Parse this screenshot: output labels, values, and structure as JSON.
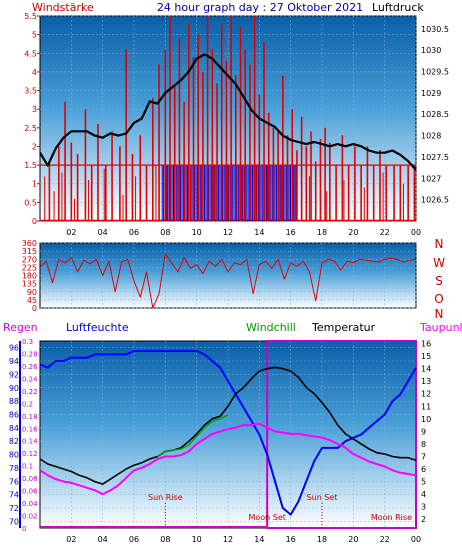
{
  "header": {
    "left_label": "Windstärke",
    "title": "24 hour graph day : 27 Oktober 2021",
    "right_label": "Luftdruck"
  },
  "colors": {
    "wind": "#e00000",
    "wind_low": "#0000cc",
    "pressure": "#000000",
    "direction": "#e00000",
    "rain_axis": "#0000cc",
    "humidity": "#0000ff",
    "windchill": "#00a000",
    "temperature": "#000000",
    "dewpoint": "#ff00ff",
    "rain_box": "#cc00cc",
    "event_text": "#cc0000",
    "bg_top": "#1070b0",
    "bg_bottom": "#ffffff"
  },
  "chart_data": [
    {
      "type": "line",
      "name": "wind-pressure",
      "x_ticks": [
        "02",
        "04",
        "06",
        "08",
        "10",
        "12",
        "14",
        "16",
        "18",
        "20",
        "22",
        "00"
      ],
      "left_axis": {
        "label": "Windstärke",
        "ylim": [
          0,
          5.5
        ],
        "ticks": [
          0,
          0.5,
          1,
          1.5,
          2,
          2.5,
          3,
          3.5,
          4,
          4.5,
          5,
          5.5
        ]
      },
      "right_axis": {
        "label": "Luftdruck",
        "ylim": [
          1026.0,
          1030.8
        ],
        "ticks": [
          1026.5,
          1027,
          1027.5,
          1028,
          1028.5,
          1029,
          1029.5,
          1030,
          1030.5
        ]
      },
      "pressure": {
        "x": [
          0,
          0.5,
          1,
          1.5,
          2,
          2.5,
          3,
          3.5,
          4,
          4.5,
          5,
          5.5,
          6,
          6.5,
          7,
          7.5,
          8,
          8.5,
          9,
          9.5,
          10,
          10.5,
          11,
          11.5,
          12,
          12.5,
          13,
          13.5,
          14,
          14.5,
          15,
          15.5,
          16,
          16.5,
          17,
          17.5,
          18,
          18.5,
          19,
          19.5,
          20,
          20.5,
          21,
          21.5,
          22,
          22.5,
          23,
          23.5,
          24
        ],
        "y": [
          1027.6,
          1027.3,
          1027.7,
          1027.95,
          1028.1,
          1028.1,
          1028.1,
          1028.0,
          1027.95,
          1028.05,
          1028.0,
          1028.05,
          1028.3,
          1028.4,
          1028.8,
          1028.75,
          1029.0,
          1029.15,
          1029.3,
          1029.5,
          1029.8,
          1029.9,
          1029.8,
          1029.6,
          1029.4,
          1029.2,
          1028.9,
          1028.6,
          1028.4,
          1028.3,
          1028.2,
          1028.0,
          1027.9,
          1027.85,
          1027.8,
          1027.85,
          1027.8,
          1027.75,
          1027.8,
          1027.75,
          1027.8,
          1027.75,
          1027.65,
          1027.6,
          1027.6,
          1027.65,
          1027.55,
          1027.4,
          1027.2
        ]
      },
      "wind_peaks": {
        "x": [
          0.6,
          1.2,
          1.6,
          2.0,
          2.4,
          2.9,
          3.3,
          3.7,
          4.2,
          4.6,
          5.1,
          5.5,
          5.9,
          6.4,
          6.8,
          7.2,
          7.6,
          8.0,
          8.3,
          8.6,
          8.9,
          9.2,
          9.5,
          9.8,
          10.1,
          10.4,
          10.7,
          11.0,
          11.3,
          11.6,
          11.9,
          12.2,
          12.5,
          12.8,
          13.1,
          13.4,
          13.7,
          14.0,
          14.3,
          14.6,
          14.9,
          15.2,
          15.5,
          15.8,
          16.1,
          16.4,
          16.7,
          17.0,
          17.3,
          17.6,
          17.9,
          18.2,
          18.5,
          18.9,
          19.3,
          19.7,
          20.1,
          20.5,
          20.9,
          21.3,
          21.7,
          22.1,
          22.6,
          23.0,
          23.5,
          23.9
        ],
        "y": [
          1.6,
          2.0,
          3.2,
          2.1,
          1.8,
          3.0,
          1.5,
          2.6,
          1.5,
          2.4,
          2.0,
          4.6,
          1.8,
          2.3,
          1.5,
          3.3,
          4.2,
          4.6,
          5.5,
          3.6,
          4.9,
          3.2,
          5.3,
          4.4,
          5.0,
          4.0,
          5.5,
          4.6,
          3.7,
          5.3,
          4.3,
          5.5,
          3.9,
          5.2,
          4.6,
          4.2,
          5.5,
          3.4,
          4.8,
          2.9,
          2.5,
          2.4,
          3.9,
          2.3,
          3.0,
          1.9,
          2.8,
          2.0,
          2.4,
          1.6,
          2.2,
          2.5,
          2.1,
          1.5,
          2.3,
          1.5,
          2.0,
          1.5,
          2.0,
          1.5,
          1.9,
          1.5,
          1.5,
          1.5,
          1.5,
          1.5
        ]
      },
      "wind_low": {
        "x": [
          0.3,
          0.9,
          1.4,
          2.2,
          3.1,
          4.1,
          5.3,
          6.1,
          7.4,
          8.1,
          8.8,
          9.6,
          10.3,
          11.1,
          12.0,
          12.9,
          13.8,
          14.5,
          15.4,
          16.3,
          17.2,
          18.3,
          19.4,
          20.7,
          21.9,
          23.2
        ],
        "y": [
          1.2,
          0.8,
          1.3,
          0.6,
          1.1,
          1.4,
          0.7,
          1.2,
          1.5,
          1.5,
          1.5,
          1.5,
          1.5,
          1.5,
          1.5,
          1.5,
          1.5,
          1.5,
          1.5,
          1.5,
          1.2,
          0.8,
          1.1,
          0.9,
          1.3,
          1.0
        ]
      }
    },
    {
      "type": "line",
      "name": "wind-direction",
      "x_ticks": [
        "02",
        "04",
        "06",
        "08",
        "10",
        "12",
        "14",
        "16",
        "18",
        "20",
        "22",
        "00"
      ],
      "left_axis": {
        "ylim": [
          0,
          360
        ],
        "ticks": [
          0,
          45,
          90,
          135,
          180,
          225,
          270,
          315,
          360
        ]
      },
      "right_labels": [
        "N",
        "W",
        "S",
        "O",
        "N"
      ],
      "direction": {
        "x": [
          0,
          0.4,
          0.8,
          1.2,
          1.6,
          2.0,
          2.4,
          2.8,
          3.2,
          3.6,
          4.0,
          4.4,
          4.8,
          5.2,
          5.6,
          6.0,
          6.4,
          6.8,
          7.2,
          7.6,
          8.0,
          8.4,
          8.8,
          9.2,
          9.6,
          10.0,
          10.4,
          10.8,
          11.2,
          11.6,
          12.0,
          12.4,
          12.8,
          13.2,
          13.6,
          14.0,
          14.4,
          14.8,
          15.2,
          15.6,
          16.0,
          16.4,
          16.8,
          17.2,
          17.6,
          18.0,
          18.4,
          18.8,
          19.2,
          19.6,
          20.0,
          20.4,
          20.8,
          21.2,
          21.6,
          22.0,
          22.4,
          22.8,
          23.2,
          23.6,
          24.0
        ],
        "y": [
          225,
          260,
          140,
          270,
          250,
          280,
          200,
          265,
          245,
          270,
          180,
          260,
          90,
          255,
          270,
          150,
          60,
          200,
          0,
          80,
          300,
          250,
          200,
          280,
          220,
          240,
          190,
          260,
          230,
          270,
          200,
          250,
          240,
          270,
          80,
          240,
          260,
          220,
          270,
          160,
          250,
          230,
          260,
          200,
          40,
          250,
          270,
          260,
          210,
          260,
          250,
          270,
          265,
          260,
          255,
          270,
          275,
          270,
          255,
          265,
          270
        ]
      }
    },
    {
      "type": "line",
      "name": "humidity-temperature",
      "x_ticks": [
        "02",
        "04",
        "06",
        "08",
        "10",
        "12",
        "14",
        "16",
        "18",
        "20",
        "22",
        "00"
      ],
      "legend": [
        "Regen",
        "Luftfeuchte",
        "Windchill",
        "Temperatur",
        "Taupunkt"
      ],
      "rain_axis": {
        "label": "Regen",
        "ylim": [
          0,
          0.3
        ],
        "ticks": [
          0,
          0.02,
          0.04,
          0.06,
          0.08,
          0.1,
          0.12,
          0.14,
          0.16,
          0.18,
          0.2,
          0.22,
          0.24,
          0.26,
          0.28,
          0.3
        ]
      },
      "humidity_axis": {
        "label": "Luftfeuchte",
        "ylim": [
          69,
          97
        ],
        "ticks": [
          70,
          72,
          74,
          76,
          78,
          80,
          82,
          84,
          86,
          88,
          90,
          92,
          94,
          96
        ]
      },
      "temp_axis": {
        "label": "Temperatur",
        "ylim": [
          1.3,
          16.2
        ],
        "ticks": [
          2,
          3,
          4,
          5,
          6,
          7,
          8,
          9,
          10,
          11,
          12,
          13,
          14,
          15,
          16
        ]
      },
      "humidity": {
        "x": [
          0,
          0.5,
          1,
          1.5,
          2,
          2.5,
          3,
          3.5,
          4,
          4.5,
          5,
          5.5,
          6,
          6.5,
          7,
          7.5,
          8,
          8.5,
          9,
          9.5,
          10,
          10.5,
          11,
          11.5,
          12,
          12.5,
          13,
          13.5,
          14,
          14.5,
          15,
          15.5,
          16,
          16.5,
          17,
          17.5,
          18,
          18.5,
          19,
          19.5,
          20,
          20.5,
          21,
          21.5,
          22,
          22.5,
          23,
          23.5,
          24
        ],
        "y": [
          93.5,
          93,
          94,
          94,
          94.5,
          94.5,
          94.5,
          95,
          95,
          95,
          95,
          95,
          95.5,
          95.5,
          95.5,
          95.5,
          95.5,
          95.5,
          95.5,
          95.5,
          95.5,
          95,
          94,
          93,
          91,
          89,
          87,
          85,
          83,
          80,
          76,
          72,
          71,
          73,
          76,
          79,
          81,
          81,
          81,
          82,
          82.5,
          83,
          84,
          85,
          86,
          88,
          89,
          91,
          93
        ]
      },
      "temperature": {
        "x": [
          0,
          0.5,
          1,
          1.5,
          2,
          2.5,
          3,
          3.5,
          4,
          4.5,
          5,
          5.5,
          6,
          6.5,
          7,
          7.5,
          8,
          8.5,
          9,
          9.5,
          10,
          10.5,
          11,
          11.5,
          12,
          12.5,
          13,
          13.5,
          14,
          14.5,
          15,
          15.5,
          16,
          16.5,
          17,
          17.5,
          18,
          18.5,
          19,
          19.5,
          20,
          20.5,
          21,
          21.5,
          22,
          22.5,
          23,
          23.5,
          24
        ],
        "y": [
          6.8,
          6.4,
          6.2,
          6.0,
          5.8,
          5.5,
          5.3,
          5.0,
          4.8,
          5.2,
          5.6,
          6.0,
          6.3,
          6.5,
          6.8,
          7.0,
          7.4,
          7.5,
          7.7,
          8.2,
          8.8,
          9.5,
          10.0,
          10.2,
          11.0,
          12.0,
          12.5,
          13.2,
          13.8,
          14.0,
          14.1,
          14.0,
          13.8,
          13.3,
          12.5,
          12.0,
          11.3,
          10.5,
          9.5,
          8.8,
          8.4,
          8.0,
          7.6,
          7.3,
          7.2,
          7.0,
          6.9,
          6.9,
          6.7
        ]
      },
      "windchill": {
        "x": [
          7.5,
          8,
          8.5,
          9,
          9.5,
          10,
          10.5,
          11,
          11.5,
          12
        ],
        "y": [
          7.0,
          7.4,
          7.5,
          7.6,
          7.9,
          8.6,
          9.3,
          9.8,
          10.0,
          10.3
        ]
      },
      "dewpoint": {
        "x": [
          0,
          0.5,
          1,
          1.5,
          2,
          2.5,
          3,
          3.5,
          4,
          4.5,
          5,
          5.5,
          6,
          6.5,
          7,
          7.5,
          8,
          8.5,
          9,
          9.5,
          10,
          10.5,
          11,
          11.5,
          12,
          12.5,
          13,
          13.5,
          14,
          14.5,
          15,
          15.5,
          16,
          16.5,
          17,
          17.5,
          18,
          18.5,
          19,
          19.5,
          20,
          20.5,
          21,
          21.5,
          22,
          22.5,
          23,
          23.5,
          24
        ],
        "y": [
          5.9,
          5.5,
          5.2,
          5.0,
          4.9,
          4.7,
          4.5,
          4.3,
          4.0,
          4.3,
          4.7,
          5.3,
          5.9,
          6.1,
          6.4,
          6.8,
          7.0,
          7.0,
          7.1,
          7.4,
          8.0,
          8.4,
          8.8,
          9.0,
          9.2,
          9.3,
          9.5,
          9.5,
          9.6,
          9.3,
          9.0,
          8.9,
          8.8,
          8.8,
          8.7,
          8.6,
          8.5,
          8.3,
          8.0,
          7.7,
          7.2,
          6.9,
          6.6,
          6.4,
          6.2,
          5.9,
          5.7,
          5.6,
          5.5
        ]
      },
      "rain_window": {
        "x": [
          14.5,
          24
        ]
      },
      "events": [
        {
          "label": "Sun Rise",
          "x": 8.0
        },
        {
          "label": "Moon Set",
          "x": 14.5
        },
        {
          "label": "Sun Set",
          "x": 18.0
        },
        {
          "label": "Moon Rise",
          "x": 24.0
        }
      ]
    }
  ]
}
